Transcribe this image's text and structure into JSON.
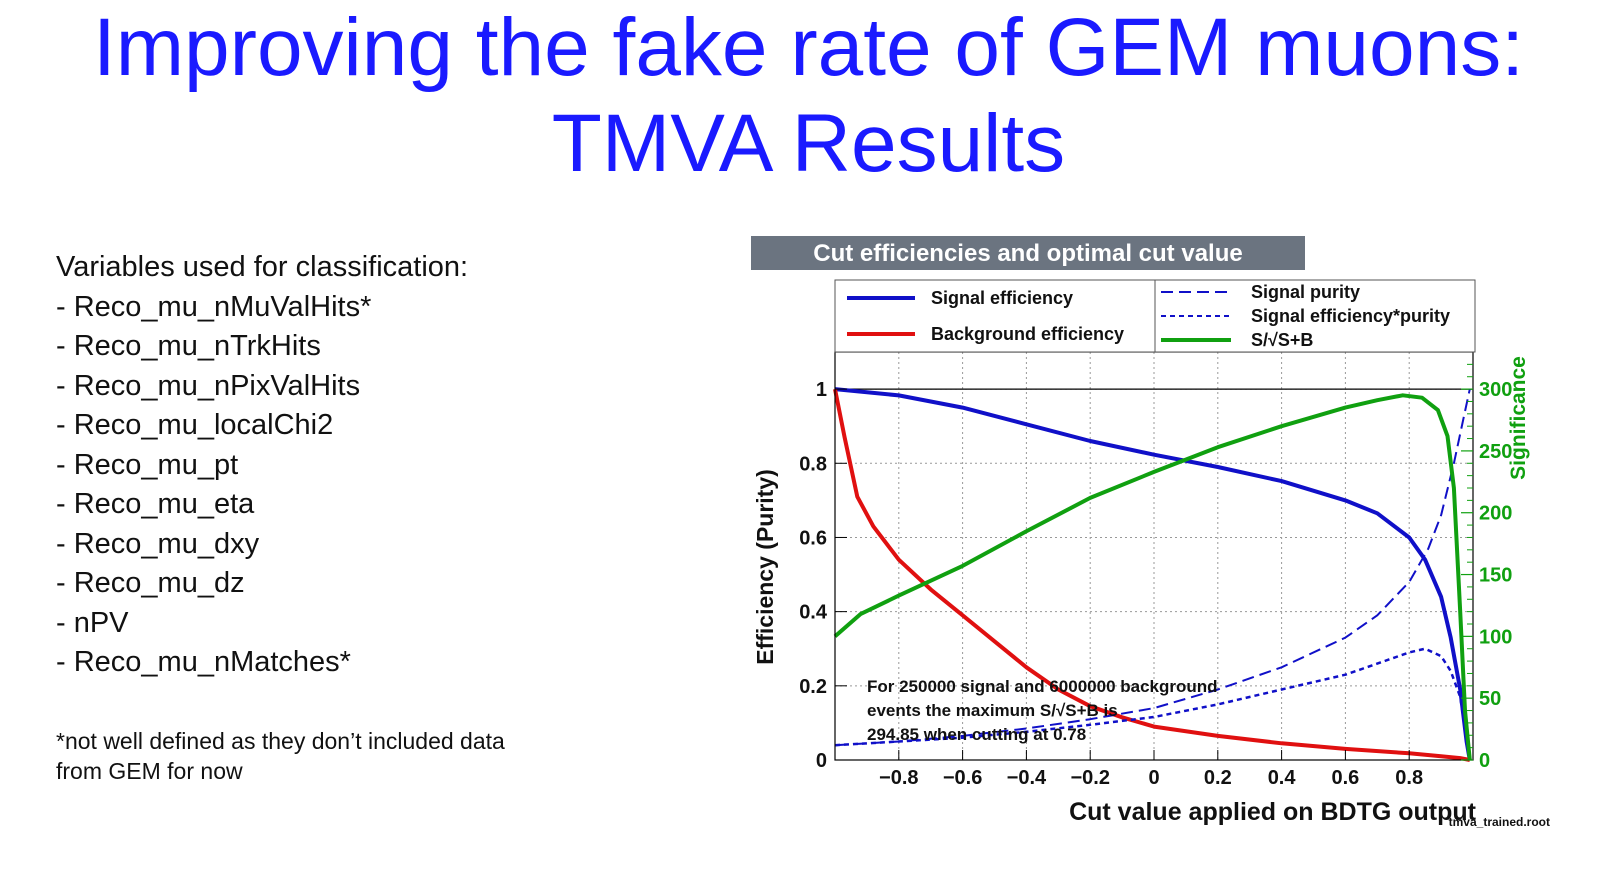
{
  "slide": {
    "title_line1": "Improving the fake rate of GEM muons:",
    "title_line2": "TMVA Results",
    "variables_heading": "Variables used for classification:",
    "variables": [
      "- Reco_mu_nMuValHits*",
      "- Reco_mu_nTrkHits",
      "- Reco_mu_nPixValHits",
      "- Reco_mu_localChi2",
      "- Reco_mu_pt",
      "- Reco_mu_eta",
      "- Reco_mu_dxy",
      "- Reco_mu_dz",
      "- nPV",
      "- Reco_mu_nMatches*"
    ],
    "footnote_line1": "*not well defined as they don’t included data",
    "footnote_line2": "from GEM for now"
  },
  "chart_data": {
    "type": "line",
    "title": "Cut efficiencies and optimal cut value",
    "xlabel": "Cut value applied on BDTG output",
    "ylabel": "Efficiency (Purity)",
    "y2label": "Significance",
    "xlim": [
      -1.0,
      1.0
    ],
    "ylim": [
      0,
      1.1
    ],
    "y2lim": [
      0,
      330
    ],
    "xticks": [
      -0.8,
      -0.6,
      -0.4,
      -0.2,
      0,
      0.2,
      0.4,
      0.6,
      0.8
    ],
    "xtick_labels": [
      "−0.8",
      "−0.6",
      "−0.4",
      "−0.2",
      "0",
      "0.2",
      "0.4",
      "0.6",
      "0.8"
    ],
    "yticks": [
      0,
      0.2,
      0.4,
      0.6,
      0.8,
      1
    ],
    "ytick_labels": [
      "0",
      "0.2",
      "0.4",
      "0.6",
      "0.8",
      "1"
    ],
    "y2ticks": [
      0,
      50,
      100,
      150,
      200,
      250,
      300
    ],
    "y2tick_labels": [
      "0",
      "50",
      "100",
      "150",
      "200",
      "250",
      "300"
    ],
    "grid": true,
    "legend": [
      {
        "label": "Signal efficiency",
        "color": "#1010c8",
        "dash": "solid"
      },
      {
        "label": "Background efficiency",
        "color": "#e01010",
        "dash": "solid"
      },
      {
        "label": "Signal purity",
        "color": "#1010c8",
        "dash": "dashed"
      },
      {
        "label": "Signal efficiency*purity",
        "color": "#1010c8",
        "dash": "dotted"
      },
      {
        "label": "S/√S+B",
        "color": "#10a010",
        "dash": "solid"
      }
    ],
    "annotation": [
      "For 250000 signal and 6000000 background",
      "events the maximum S/√S+B is",
      "294.85 when cutting at  0.78"
    ],
    "file_label": "tmva_trained.root",
    "series": [
      {
        "name": "Signal efficiency",
        "axis": "left",
        "color": "#1010c8",
        "dash": "solid",
        "x": [
          -1.0,
          -0.8,
          -0.6,
          -0.4,
          -0.2,
          0.0,
          0.2,
          0.4,
          0.6,
          0.7,
          0.8,
          0.85,
          0.9,
          0.93,
          0.96,
          0.98,
          0.99
        ],
        "y": [
          1.0,
          0.983,
          0.95,
          0.905,
          0.86,
          0.823,
          0.79,
          0.752,
          0.7,
          0.665,
          0.6,
          0.54,
          0.44,
          0.33,
          0.19,
          0.05,
          0.0
        ]
      },
      {
        "name": "Background efficiency",
        "axis": "left",
        "color": "#e01010",
        "dash": "solid",
        "x": [
          -1.0,
          -0.97,
          -0.93,
          -0.88,
          -0.8,
          -0.7,
          -0.6,
          -0.5,
          -0.4,
          -0.3,
          -0.2,
          -0.1,
          0.0,
          0.2,
          0.4,
          0.6,
          0.8,
          0.9,
          0.96,
          0.99
        ],
        "y": [
          1.0,
          0.87,
          0.71,
          0.63,
          0.54,
          0.46,
          0.39,
          0.32,
          0.25,
          0.19,
          0.145,
          0.115,
          0.09,
          0.065,
          0.045,
          0.03,
          0.018,
          0.01,
          0.005,
          0.0
        ]
      },
      {
        "name": "Signal purity",
        "axis": "left",
        "color": "#1010c8",
        "dash": "dashed",
        "x": [
          -1.0,
          -0.8,
          -0.6,
          -0.4,
          -0.2,
          0.0,
          0.2,
          0.4,
          0.6,
          0.7,
          0.8,
          0.86,
          0.9,
          0.94,
          0.97,
          0.99
        ],
        "y": [
          0.04,
          0.05,
          0.065,
          0.085,
          0.11,
          0.14,
          0.19,
          0.25,
          0.33,
          0.39,
          0.48,
          0.57,
          0.66,
          0.8,
          0.92,
          1.0
        ]
      },
      {
        "name": "Signal efficiency*purity",
        "axis": "left",
        "color": "#1010c8",
        "dash": "dotted",
        "x": [
          -1.0,
          -0.8,
          -0.6,
          -0.4,
          -0.2,
          0.0,
          0.2,
          0.4,
          0.6,
          0.7,
          0.8,
          0.85,
          0.9,
          0.93,
          0.96,
          0.99
        ],
        "y": [
          0.04,
          0.05,
          0.06,
          0.076,
          0.095,
          0.116,
          0.15,
          0.19,
          0.23,
          0.26,
          0.29,
          0.3,
          0.28,
          0.24,
          0.17,
          0.0
        ]
      },
      {
        "name": "S/√S+B",
        "axis": "right",
        "color": "#10a010",
        "dash": "solid",
        "x": [
          -1.0,
          -0.92,
          -0.8,
          -0.6,
          -0.4,
          -0.2,
          0.0,
          0.2,
          0.4,
          0.6,
          0.7,
          0.78,
          0.84,
          0.89,
          0.92,
          0.94,
          0.96,
          0.975,
          0.99
        ],
        "y": [
          100,
          118,
          133,
          157,
          185,
          212,
          233,
          253,
          270,
          285,
          291,
          295,
          293,
          283,
          262,
          220,
          120,
          40,
          0
        ]
      }
    ]
  }
}
